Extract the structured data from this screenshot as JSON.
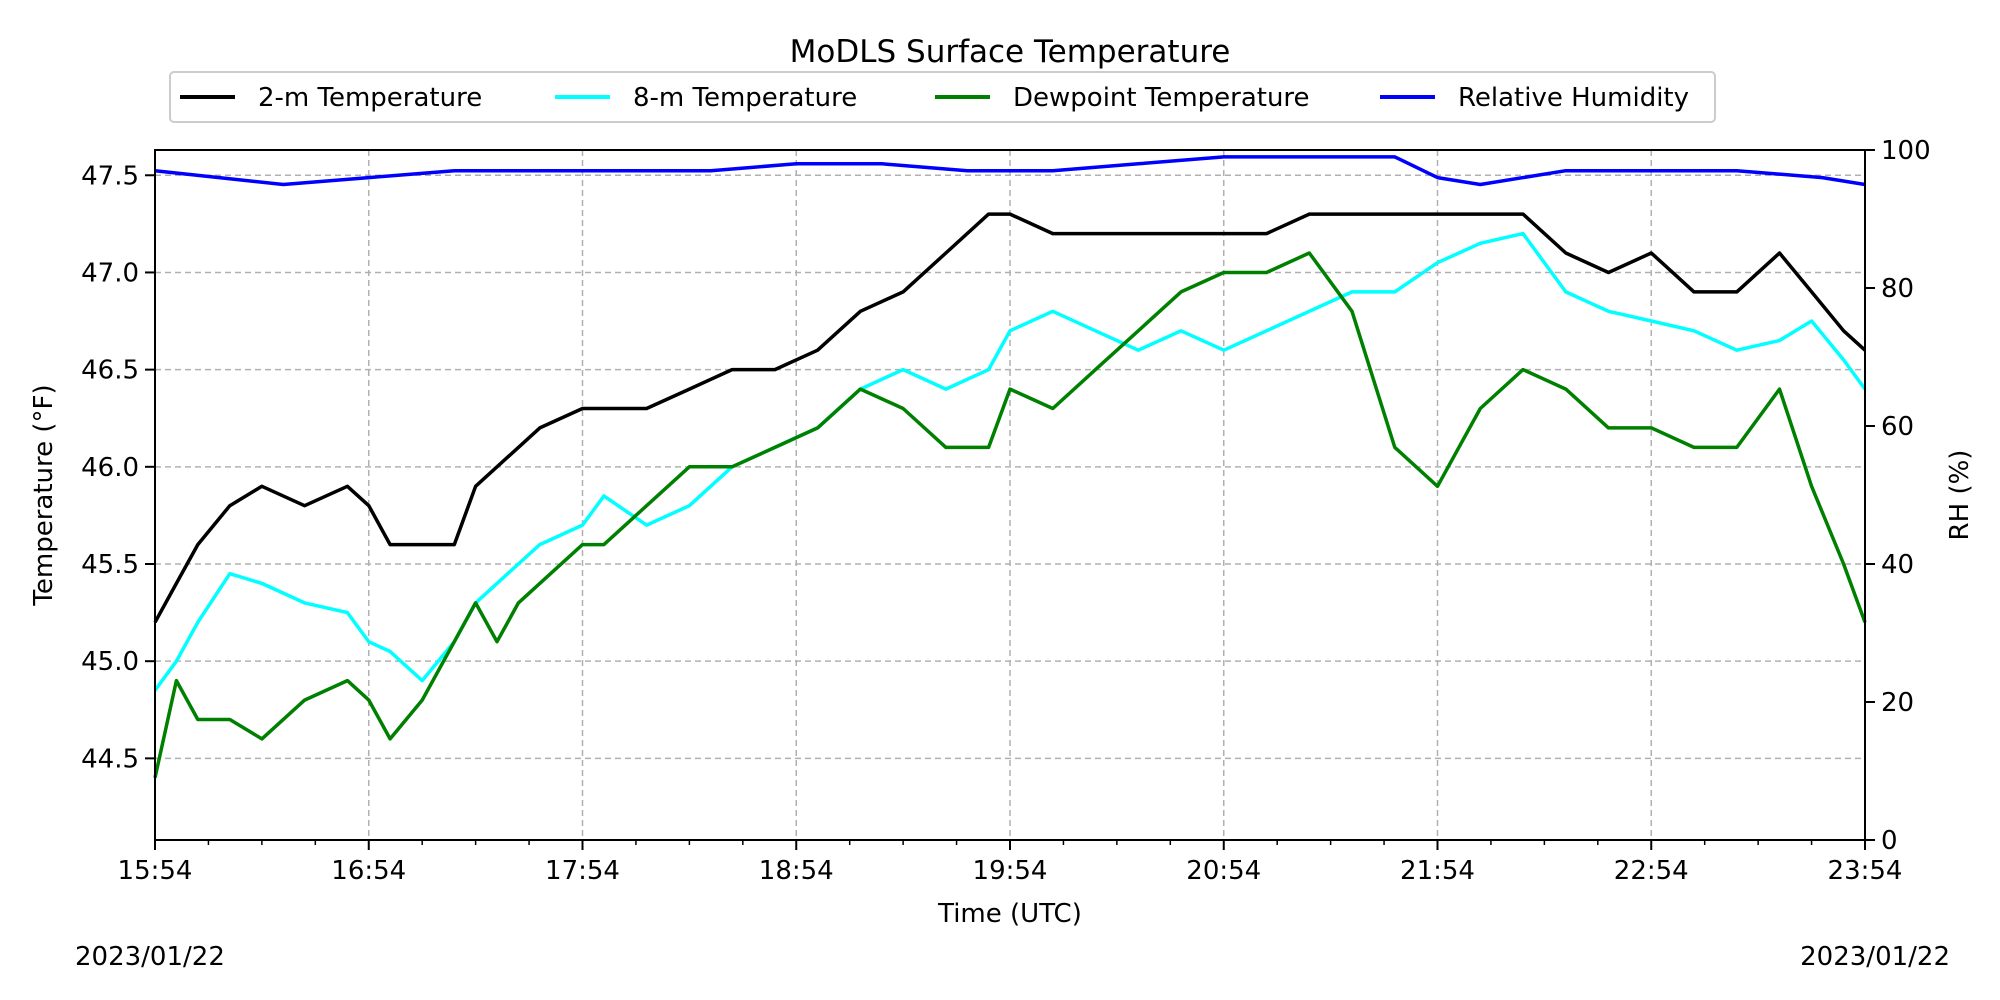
{
  "chart_data": {
    "type": "line",
    "title": "MoDLS Surface Temperature",
    "xlabel": "Time (UTC)",
    "ylabel": "Temperature ($^\\circ$F)",
    "ylabel_display": "Temperature (°F)",
    "y2label": "RH (%)",
    "x_ticks": [
      "15:54",
      "16:54",
      "17:54",
      "18:54",
      "19:54",
      "20:54",
      "21:54",
      "22:54",
      "23:54"
    ],
    "x_range_hours": [
      0,
      8
    ],
    "ylim": [
      44.08,
      47.63
    ],
    "y_ticks": [
      "44.5",
      "45.0",
      "45.5",
      "46.0",
      "46.5",
      "47.0",
      "47.5"
    ],
    "y_tick_values": [
      44.5,
      45.0,
      45.5,
      46.0,
      46.5,
      47.0,
      47.5
    ],
    "y2lim": [
      0,
      100
    ],
    "y2_ticks": [
      "0",
      "20",
      "40",
      "60",
      "80",
      "100"
    ],
    "y2_tick_values": [
      0,
      20,
      40,
      60,
      80,
      100
    ],
    "grid": true,
    "legend_position": "top-center",
    "date_left": "2023/01/22",
    "date_right": "2023/01/22",
    "series": [
      {
        "name": "2-m Temperature",
        "color": "#000000",
        "axis": "left",
        "x_hours": [
          0.0,
          0.1,
          0.2,
          0.35,
          0.5,
          0.7,
          0.9,
          1.0,
          1.1,
          1.25,
          1.4,
          1.5,
          1.6,
          1.7,
          1.8,
          2.0,
          2.1,
          2.3,
          2.5,
          2.7,
          2.9,
          3.1,
          3.3,
          3.5,
          3.7,
          3.9,
          4.0,
          4.2,
          4.4,
          4.6,
          4.8,
          5.0,
          5.2,
          5.4,
          5.6,
          5.8,
          6.0,
          6.2,
          6.4,
          6.6,
          6.8,
          7.0,
          7.2,
          7.4,
          7.6,
          7.75,
          7.9,
          8.0
        ],
        "values": [
          45.2,
          45.4,
          45.6,
          45.8,
          45.9,
          45.8,
          45.9,
          45.8,
          45.6,
          45.6,
          45.6,
          45.9,
          46.0,
          46.1,
          46.2,
          46.3,
          46.3,
          46.3,
          46.4,
          46.5,
          46.5,
          46.6,
          46.8,
          46.9,
          47.1,
          47.3,
          47.3,
          47.2,
          47.2,
          47.2,
          47.2,
          47.2,
          47.2,
          47.3,
          47.3,
          47.3,
          47.3,
          47.3,
          47.3,
          47.1,
          47.0,
          47.1,
          46.9,
          46.9,
          47.1,
          46.9,
          46.7,
          46.6
        ]
      },
      {
        "name": "8-m Temperature",
        "color": "#00ffff",
        "axis": "left",
        "x_hours": [
          0.0,
          0.1,
          0.2,
          0.35,
          0.5,
          0.7,
          0.9,
          1.0,
          1.1,
          1.25,
          1.4,
          1.5,
          1.6,
          1.7,
          1.8,
          2.0,
          2.1,
          2.3,
          2.5,
          2.7,
          2.9,
          3.1,
          3.3,
          3.5,
          3.7,
          3.9,
          4.0,
          4.2,
          4.4,
          4.6,
          4.8,
          5.0,
          5.2,
          5.4,
          5.6,
          5.8,
          6.0,
          6.2,
          6.4,
          6.6,
          6.8,
          7.0,
          7.2,
          7.4,
          7.6,
          7.75,
          7.9,
          8.0
        ],
        "values": [
          44.85,
          45.0,
          45.2,
          45.45,
          45.4,
          45.3,
          45.25,
          45.1,
          45.05,
          44.9,
          45.1,
          45.3,
          45.4,
          45.5,
          45.6,
          45.7,
          45.85,
          45.7,
          45.8,
          46.0,
          46.1,
          46.2,
          46.4,
          46.5,
          46.4,
          46.5,
          46.7,
          46.8,
          46.7,
          46.6,
          46.7,
          46.6,
          46.7,
          46.8,
          46.9,
          46.9,
          47.05,
          47.15,
          47.2,
          46.9,
          46.8,
          46.75,
          46.7,
          46.6,
          46.65,
          46.75,
          46.55,
          46.4
        ]
      },
      {
        "name": "Dewpoint Temperature",
        "color": "#008000",
        "axis": "left",
        "x_hours": [
          0.0,
          0.1,
          0.2,
          0.35,
          0.5,
          0.7,
          0.9,
          1.0,
          1.1,
          1.25,
          1.4,
          1.5,
          1.6,
          1.7,
          1.8,
          2.0,
          2.1,
          2.3,
          2.5,
          2.7,
          2.9,
          3.1,
          3.3,
          3.5,
          3.7,
          3.9,
          4.0,
          4.2,
          4.4,
          4.6,
          4.8,
          5.0,
          5.2,
          5.4,
          5.6,
          5.8,
          6.0,
          6.2,
          6.4,
          6.6,
          6.8,
          7.0,
          7.2,
          7.4,
          7.6,
          7.75,
          7.9,
          8.0
        ],
        "values": [
          44.4,
          44.9,
          44.7,
          44.7,
          44.6,
          44.8,
          44.9,
          44.8,
          44.6,
          44.8,
          45.1,
          45.3,
          45.1,
          45.3,
          45.4,
          45.6,
          45.6,
          45.8,
          46.0,
          46.0,
          46.1,
          46.2,
          46.4,
          46.3,
          46.1,
          46.1,
          46.4,
          46.3,
          46.5,
          46.7,
          46.9,
          47.0,
          47.0,
          47.1,
          46.8,
          46.1,
          45.9,
          46.3,
          46.5,
          46.4,
          46.2,
          46.2,
          46.1,
          46.1,
          46.4,
          45.9,
          45.5,
          45.2
        ]
      },
      {
        "name": "Relative Humidity",
        "color": "#0000ff",
        "axis": "right",
        "x_hours": [
          0.0,
          0.3,
          0.6,
          1.0,
          1.4,
          1.8,
          2.2,
          2.6,
          3.0,
          3.4,
          3.8,
          4.2,
          4.6,
          5.0,
          5.4,
          5.8,
          6.0,
          6.2,
          6.6,
          7.0,
          7.4,
          7.8,
          8.0
        ],
        "values": [
          97,
          96,
          95,
          96,
          97,
          97,
          97,
          97,
          98,
          98,
          97,
          97,
          98,
          99,
          99,
          99,
          96,
          95,
          97,
          97,
          97,
          96,
          95
        ]
      }
    ]
  }
}
